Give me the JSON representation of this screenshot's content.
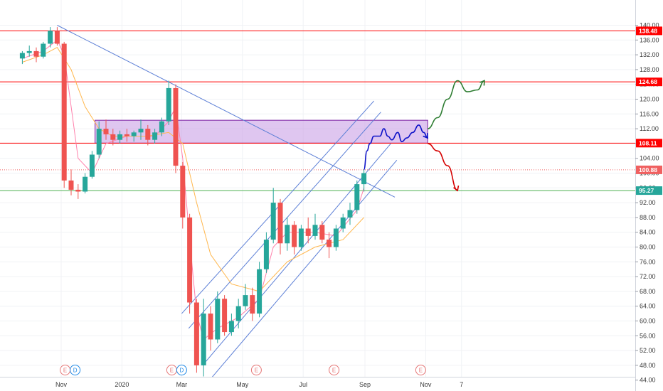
{
  "chart_data": {
    "type": "candlestick",
    "y_axis": {
      "min": 44,
      "max": 140,
      "step": 4,
      "tick_labels": [
        "44.00",
        "48.00",
        "52.00",
        "56.00",
        "60.00",
        "64.00",
        "68.00",
        "72.00",
        "76.00",
        "80.00",
        "84.00",
        "88.00",
        "92.00",
        "96.00",
        "100.00",
        "104.00",
        "108.00",
        "112.00",
        "116.00",
        "120.00",
        "124.00",
        "128.00",
        "132.00",
        "136.00",
        "140.00"
      ]
    },
    "x_axis": {
      "labels": [
        {
          "text": "Nov",
          "date": "2019-11-01"
        },
        {
          "text": "2020",
          "date": "2020-01-01"
        },
        {
          "text": "Mar",
          "date": "2020-03-01"
        },
        {
          "text": "May",
          "date": "2020-05-01"
        },
        {
          "text": "Jul",
          "date": "2020-07-01"
        },
        {
          "text": "Sep",
          "date": "2020-09-01"
        },
        {
          "text": "Nov",
          "date": "2020-11-01"
        },
        {
          "text": "7",
          "date": "2020-12-07"
        }
      ]
    },
    "horizontal_levels": [
      {
        "price": 138.48,
        "label": "138.48",
        "color": "#ff0000",
        "style": "solid"
      },
      {
        "price": 124.68,
        "label": "124.68",
        "color": "#ff0000",
        "style": "solid"
      },
      {
        "price": 108.11,
        "label": "108.11",
        "color": "#ff0000",
        "style": "solid"
      },
      {
        "price": 100.88,
        "label": "100.88",
        "color": "#f06060",
        "style": "dotted"
      },
      {
        "price": 95.27,
        "label": "95.27",
        "color": "#4caf50",
        "style": "solid"
      }
    ],
    "current_price_tag": {
      "label": "95.27",
      "color": "#26a69a"
    },
    "supply_zone": {
      "start": "2019-12-05",
      "end": "2020-11-03",
      "low": 108.11,
      "high": 114.3,
      "fill": "#c9a0e6",
      "border": "#7b1fa2"
    },
    "candles_ohlc": [
      [
        "2019-09-23",
        131,
        133,
        129.5,
        132.5
      ],
      [
        "2019-09-30",
        132.5,
        134.5,
        131.5,
        133
      ],
      [
        "2019-10-07",
        133,
        134,
        130,
        131.5
      ],
      [
        "2019-10-14",
        131.5,
        135.5,
        131,
        135
      ],
      [
        "2019-10-21",
        135,
        139.5,
        134,
        138.5
      ],
      [
        "2019-10-28",
        138.5,
        139.5,
        134.5,
        135
      ],
      [
        "2019-11-04",
        135,
        135.5,
        96,
        98
      ],
      [
        "2019-11-11",
        98,
        101,
        94,
        95.5
      ],
      [
        "2019-11-18",
        95.5,
        97,
        93,
        95
      ],
      [
        "2019-11-25",
        95,
        100,
        94.5,
        99
      ],
      [
        "2019-12-02",
        99,
        106,
        98.5,
        105
      ],
      [
        "2019-12-09",
        105,
        114,
        104,
        112
      ],
      [
        "2019-12-16",
        112,
        114.5,
        109,
        110.5
      ],
      [
        "2019-12-23",
        110.5,
        112,
        107.5,
        109
      ],
      [
        "2019-12-30",
        109,
        111.5,
        108,
        110.5
      ],
      [
        "2020-01-06",
        110.5,
        112,
        108.5,
        110
      ],
      [
        "2020-01-13",
        110,
        111.5,
        108.5,
        111
      ],
      [
        "2020-01-20",
        111,
        114.5,
        109,
        112
      ],
      [
        "2020-01-27",
        112,
        113,
        107.5,
        109
      ],
      [
        "2020-02-03",
        109,
        112,
        108,
        111
      ],
      [
        "2020-02-10",
        111,
        115,
        110,
        114
      ],
      [
        "2020-02-17",
        114,
        125,
        113,
        123
      ],
      [
        "2020-02-24",
        123,
        124,
        100,
        102
      ],
      [
        "2020-03-02",
        102,
        103,
        85,
        88
      ],
      [
        "2020-03-09",
        88,
        89,
        62,
        65
      ],
      [
        "2020-03-16",
        65,
        66,
        46,
        48
      ],
      [
        "2020-03-23",
        48,
        66,
        45,
        62
      ],
      [
        "2020-03-30",
        62,
        64,
        52,
        55
      ],
      [
        "2020-04-06",
        55,
        68,
        54,
        66
      ],
      [
        "2020-04-13",
        66,
        67,
        56,
        57
      ],
      [
        "2020-04-20",
        57,
        62,
        56,
        60
      ],
      [
        "2020-04-27",
        60,
        66,
        58,
        64
      ],
      [
        "2020-05-04",
        64,
        70,
        63,
        67
      ],
      [
        "2020-05-11",
        67,
        69,
        60,
        62
      ],
      [
        "2020-05-18",
        62,
        76,
        61,
        74
      ],
      [
        "2020-05-25",
        74,
        84,
        73,
        82
      ],
      [
        "2020-06-01",
        82,
        96,
        81,
        92
      ],
      [
        "2020-06-08",
        92,
        93,
        78,
        81
      ],
      [
        "2020-06-15",
        81,
        88,
        79,
        86
      ],
      [
        "2020-06-22",
        86,
        87,
        78,
        80
      ],
      [
        "2020-06-29",
        80,
        86,
        79,
        85
      ],
      [
        "2020-07-06",
        85,
        88,
        81,
        83
      ],
      [
        "2020-07-13",
        83,
        89,
        82,
        86
      ],
      [
        "2020-07-20",
        86,
        87,
        81,
        82
      ],
      [
        "2020-07-27",
        82,
        84,
        77,
        80
      ],
      [
        "2020-08-03",
        80,
        86,
        79,
        85
      ],
      [
        "2020-08-10",
        85,
        89,
        84,
        88
      ],
      [
        "2020-08-17",
        88,
        92,
        86,
        90
      ],
      [
        "2020-08-24",
        90,
        98,
        89,
        97
      ],
      [
        "2020-08-31",
        97,
        101,
        95,
        100
      ]
    ],
    "moving_averages": [
      {
        "name": "",
        "color": "#ff80ab",
        "points": [
          [
            "2019-09-23",
            131
          ],
          [
            "2019-10-14",
            133
          ],
          [
            "2019-10-28",
            136
          ],
          [
            "2019-11-04",
            132
          ],
          [
            "2019-11-11",
            118
          ],
          [
            "2019-11-18",
            104
          ],
          [
            "2019-12-02",
            100
          ],
          [
            "2019-12-16",
            108
          ],
          [
            "2020-01-06",
            110
          ],
          [
            "2020-02-03",
            110
          ],
          [
            "2020-02-17",
            114
          ],
          [
            "2020-02-24",
            118
          ],
          [
            "2020-03-02",
            104
          ],
          [
            "2020-03-09",
            82
          ],
          [
            "2020-03-16",
            62
          ],
          [
            "2020-03-23",
            55
          ],
          [
            "2020-04-06",
            58
          ],
          [
            "2020-04-27",
            61
          ],
          [
            "2020-05-18",
            66
          ],
          [
            "2020-06-01",
            80
          ],
          [
            "2020-06-15",
            84
          ],
          [
            "2020-07-13",
            84
          ],
          [
            "2020-08-03",
            83
          ],
          [
            "2020-08-24",
            90
          ],
          [
            "2020-08-31",
            96
          ]
        ]
      },
      {
        "name": "",
        "color": "#ffb74d",
        "points": [
          [
            "2019-09-23",
            130
          ],
          [
            "2019-10-14",
            132
          ],
          [
            "2019-10-28",
            134
          ],
          [
            "2019-11-11",
            128
          ],
          [
            "2019-11-25",
            118
          ],
          [
            "2019-12-09",
            112
          ],
          [
            "2019-12-23",
            110
          ],
          [
            "2020-01-27",
            110
          ],
          [
            "2020-02-17",
            111
          ],
          [
            "2020-03-02",
            108
          ],
          [
            "2020-03-16",
            92
          ],
          [
            "2020-03-30",
            78
          ],
          [
            "2020-04-20",
            70
          ],
          [
            "2020-05-18",
            68
          ],
          [
            "2020-06-15",
            76
          ],
          [
            "2020-07-13",
            80
          ],
          [
            "2020-08-10",
            82
          ],
          [
            "2020-08-31",
            88
          ]
        ]
      }
    ],
    "trendlines": [
      {
        "from": [
          "2019-10-28",
          140.0
        ],
        "to": [
          "2020-10-01",
          93.5
        ],
        "color": "#5c7fd6"
      }
    ],
    "channel_lines": [
      {
        "from": [
          "2020-03-01",
          62
        ],
        "to": [
          "2020-09-10",
          119.5
        ],
        "color": "#5c7fd6"
      },
      {
        "from": [
          "2020-03-08",
          58
        ],
        "to": [
          "2020-09-17",
          116.5
        ],
        "color": "#5c7fd6"
      },
      {
        "from": [
          "2020-03-22",
          48
        ],
        "to": [
          "2020-09-27",
          108
        ],
        "color": "#5c7fd6"
      },
      {
        "from": [
          "2020-03-29",
          44
        ],
        "to": [
          "2020-10-03",
          103.5
        ],
        "color": "#5c7fd6"
      }
    ],
    "projection_paths": [
      {
        "color": "#0d12c8",
        "points": [
          [
            "2020-08-31",
            101
          ],
          [
            "2020-09-03",
            106
          ],
          [
            "2020-09-06",
            108
          ],
          [
            "2020-09-10",
            110
          ],
          [
            "2020-09-16",
            110
          ],
          [
            "2020-09-20",
            112
          ],
          [
            "2020-09-24",
            110
          ],
          [
            "2020-09-28",
            109
          ],
          [
            "2020-10-04",
            111
          ],
          [
            "2020-10-08",
            108.5
          ],
          [
            "2020-10-13",
            109.5
          ],
          [
            "2020-10-19",
            111
          ],
          [
            "2020-10-25",
            113
          ],
          [
            "2020-10-30",
            111
          ],
          [
            "2020-11-03",
            109.5
          ]
        ]
      },
      {
        "color": "#2e7d32",
        "points": [
          [
            "2020-11-03",
            112
          ],
          [
            "2020-11-13",
            115
          ],
          [
            "2020-11-23",
            120
          ],
          [
            "2020-12-03",
            125
          ],
          [
            "2020-12-13",
            122
          ],
          [
            "2020-12-23",
            122.5
          ],
          [
            "2020-12-30",
            125
          ]
        ]
      },
      {
        "color": "#d50000",
        "points": [
          [
            "2020-11-03",
            108
          ],
          [
            "2020-11-13",
            106
          ],
          [
            "2020-11-23",
            102
          ],
          [
            "2020-12-03",
            95.3
          ]
        ]
      }
    ],
    "events": [
      {
        "date": "2019-11-05",
        "letter": "E",
        "color": "#e57373"
      },
      {
        "date": "2019-11-15",
        "letter": "D",
        "color": "#1e88e5"
      },
      {
        "date": "2020-02-20",
        "letter": "E",
        "color": "#e57373"
      },
      {
        "date": "2020-03-01",
        "letter": "D",
        "color": "#1e88e5"
      },
      {
        "date": "2020-05-15",
        "letter": "E",
        "color": "#e57373"
      },
      {
        "date": "2020-08-01",
        "letter": "E",
        "color": "#e57373"
      },
      {
        "date": "2020-10-27",
        "letter": "E",
        "color": "#e57373"
      }
    ],
    "grid": true
  }
}
